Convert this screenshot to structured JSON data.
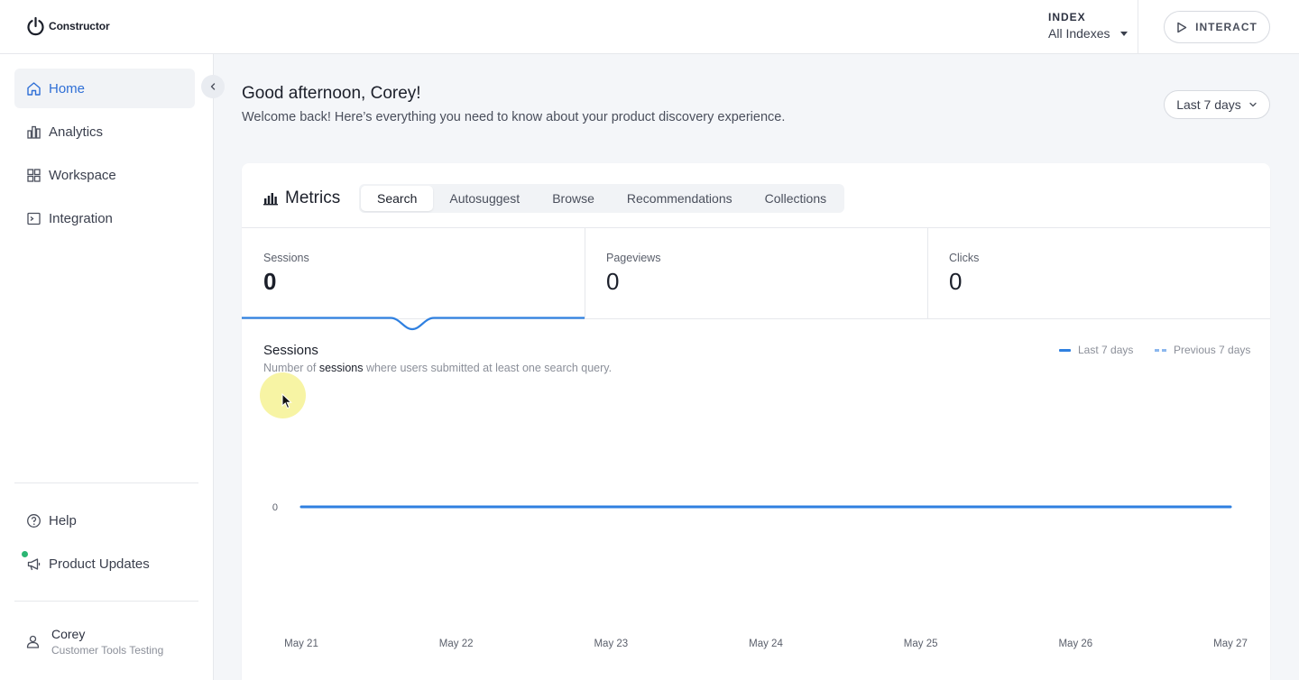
{
  "topbar": {
    "logo_text": "Constructor",
    "index_label": "INDEX",
    "index_value": "All Indexes",
    "interact_label": "INTERACT"
  },
  "sidebar": {
    "items": [
      {
        "label": "Home",
        "icon": "home-icon",
        "active": true
      },
      {
        "label": "Analytics",
        "icon": "bar-chart-icon"
      },
      {
        "label": "Workspace",
        "icon": "grid-icon"
      },
      {
        "label": "Integration",
        "icon": "terminal-icon"
      }
    ],
    "bottom_items": [
      {
        "label": "Help",
        "icon": "help-circle-icon"
      },
      {
        "label": "Product Updates",
        "icon": "megaphone-icon",
        "badge": true
      }
    ],
    "user": {
      "name": "Corey",
      "org": "Customer Tools Testing"
    }
  },
  "main": {
    "greeting": "Good afternoon, Corey!",
    "subgreeting": "Welcome back! Here’s everything you need to know about your product discovery experience.",
    "date_range": "Last 7 days"
  },
  "metrics": {
    "title": "Metrics",
    "tabs": [
      "Search",
      "Autosuggest",
      "Browse",
      "Recommendations",
      "Collections"
    ],
    "active_tab": "Search",
    "stats": [
      {
        "label": "Sessions",
        "value": "0"
      },
      {
        "label": "Pageviews",
        "value": "0"
      },
      {
        "label": "Clicks",
        "value": "0"
      }
    ]
  },
  "chart": {
    "title": "Sessions",
    "subtitle_pre": "Number of ",
    "subtitle_bold": "sessions",
    "subtitle_post": " where users submitted at least one search query.",
    "legend": {
      "current": "Last 7 days",
      "previous": "Previous 7 days"
    }
  },
  "colors": {
    "accent": "#2f80e0",
    "accent_light": "#8cb7ee",
    "badge": "#2bb673"
  },
  "chart_data": {
    "type": "line",
    "title": "Sessions",
    "x": [
      "May 21",
      "May 22",
      "May 23",
      "May 24",
      "May 25",
      "May 26",
      "May 27"
    ],
    "series": [
      {
        "name": "Last 7 days",
        "values": [
          0,
          0,
          0,
          0,
          0,
          0,
          0
        ]
      }
    ],
    "y_ticks": [
      "0"
    ],
    "grid": false,
    "legend": "top-right"
  }
}
